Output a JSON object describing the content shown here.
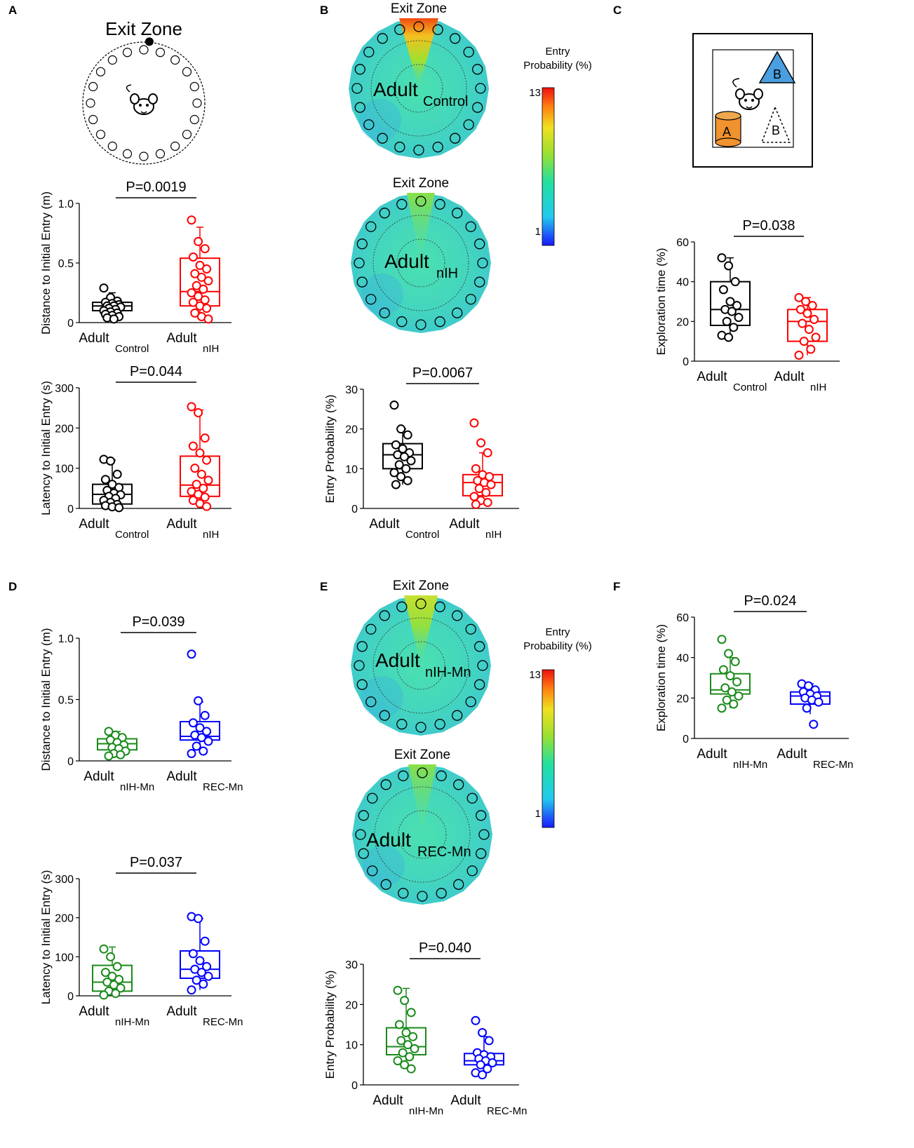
{
  "panel_letters": [
    "A",
    "B",
    "C",
    "D",
    "E",
    "F"
  ],
  "colors": {
    "black": "#000000",
    "red": "#ff0000",
    "green": "#1a8a1a",
    "blue": "#0000ff",
    "orange": "#f0922e",
    "lightblue": "#4a9fe0"
  },
  "schematics": {
    "maze_title": "Exit Zone",
    "heatmap_title": "Exit Zone",
    "heatmap_labels": {
      "B1": {
        "main": "Adult",
        "sub": "Control"
      },
      "B2": {
        "main": "Adult",
        "sub": "nIH"
      },
      "E1": {
        "main": "Adult",
        "sub": "nIH-Mn"
      },
      "E2": {
        "main": "Adult",
        "sub": "REC-Mn"
      }
    },
    "colorbar_title": [
      "Entry",
      "Probability (%)"
    ],
    "colorbar_max": "13",
    "colorbar_min": "1",
    "objects": {
      "cylinder": "A",
      "triangle": "B",
      "dashed_triangle": "B"
    }
  },
  "chart_data": [
    {
      "id": "A1",
      "type": "box",
      "ylabel": "Distance to Initial Entry (m)",
      "ylim": [
        0,
        1.0
      ],
      "yticks": [
        "0",
        "0.5",
        "1.0"
      ],
      "pvalue": "P=0.0019",
      "groups": [
        {
          "main": "Adult",
          "sub": "Control",
          "color": "black",
          "q1": 0.1,
          "median": 0.14,
          "q3": 0.17,
          "whisker_low": 0.05,
          "whisker_high": 0.25,
          "points": [
            0.29,
            0.21,
            0.18,
            0.17,
            0.16,
            0.15,
            0.14,
            0.14,
            0.13,
            0.12,
            0.11,
            0.1,
            0.09,
            0.08,
            0.07,
            0.06,
            0.05,
            0.04,
            0.03
          ]
        },
        {
          "main": "Adult",
          "sub": "nIH",
          "color": "red",
          "q1": 0.14,
          "median": 0.26,
          "q3": 0.54,
          "whisker_low": 0.03,
          "whisker_high": 0.8,
          "points": [
            0.86,
            0.68,
            0.62,
            0.55,
            0.48,
            0.45,
            0.41,
            0.38,
            0.35,
            0.31,
            0.28,
            0.25,
            0.22,
            0.19,
            0.17,
            0.14,
            0.12,
            0.08,
            0.05,
            0.03
          ]
        }
      ]
    },
    {
      "id": "A2",
      "type": "box",
      "ylabel": "Latency to Initial Entry (s)",
      "ylim": [
        0,
        300
      ],
      "yticks": [
        "0",
        "100",
        "200",
        "300"
      ],
      "pvalue": "P=0.044",
      "groups": [
        {
          "main": "Adult",
          "sub": "Control",
          "color": "black",
          "q1": 11,
          "median": 35,
          "q3": 60,
          "whisker_low": 3,
          "whisker_high": 120,
          "points": [
            122,
            118,
            85,
            72,
            60,
            52,
            45,
            38,
            34,
            30,
            25,
            20,
            15,
            10,
            7,
            4,
            2
          ]
        },
        {
          "main": "Adult",
          "sub": "nIH",
          "color": "red",
          "q1": 30,
          "median": 58,
          "q3": 130,
          "whisker_low": 5,
          "whisker_high": 245,
          "points": [
            253,
            238,
            175,
            155,
            138,
            120,
            100,
            85,
            70,
            60,
            50,
            42,
            35,
            28,
            20,
            12,
            5
          ]
        }
      ]
    },
    {
      "id": "B3",
      "type": "box",
      "ylabel": "Entry Probability (%)",
      "ylim": [
        0,
        30
      ],
      "yticks": [
        "0",
        "10",
        "20",
        "30"
      ],
      "pvalue": "P=0.0067",
      "groups": [
        {
          "main": "Adult",
          "sub": "Control",
          "color": "black",
          "q1": 10,
          "median": 13.5,
          "q3": 16.3,
          "whisker_low": 6,
          "whisker_high": 20,
          "points": [
            26,
            20,
            18.5,
            16,
            15,
            14,
            13.5,
            13,
            12,
            11,
            10,
            9,
            8,
            7,
            6
          ]
        },
        {
          "main": "Adult",
          "sub": "nIH",
          "color": "red",
          "q1": 3.2,
          "median": 6.5,
          "q3": 8.5,
          "whisker_low": 1,
          "whisker_high": 14,
          "points": [
            21.5,
            16.5,
            14,
            10,
            8.5,
            8,
            7,
            6.5,
            6,
            5,
            4,
            3,
            2,
            1.5,
            1
          ]
        }
      ]
    },
    {
      "id": "C1",
      "type": "box",
      "ylabel": "Exploration time (%)",
      "ylim": [
        0,
        60
      ],
      "yticks": [
        "0",
        "20",
        "40",
        "60"
      ],
      "pvalue": "P=0.038",
      "groups": [
        {
          "main": "Adult",
          "sub": "Control",
          "color": "black",
          "q1": 18,
          "median": 26,
          "q3": 40,
          "whisker_low": 12,
          "whisker_high": 52,
          "points": [
            52,
            48,
            40,
            36,
            30,
            28,
            26,
            25,
            22,
            20,
            17,
            13,
            12
          ]
        },
        {
          "main": "Adult",
          "sub": "nIH",
          "color": "red",
          "q1": 10,
          "median": 20,
          "q3": 26,
          "whisker_low": 3,
          "whisker_high": 32,
          "points": [
            32,
            30,
            28,
            26,
            24,
            21,
            19,
            16,
            12,
            10,
            6,
            3
          ]
        }
      ]
    },
    {
      "id": "D1",
      "type": "box",
      "ylabel": "Distance to Initial Entry (m)",
      "ylim": [
        0,
        1.0
      ],
      "yticks": [
        "0",
        "0.5",
        "1.0"
      ],
      "pvalue": "P=0.039",
      "groups": [
        {
          "main": "Adult",
          "sub": "nIH-Mn",
          "color": "green",
          "q1": 0.09,
          "median": 0.14,
          "q3": 0.18,
          "whisker_low": 0.04,
          "whisker_high": 0.24,
          "points": [
            0.24,
            0.21,
            0.19,
            0.17,
            0.15,
            0.13,
            0.11,
            0.1,
            0.08,
            0.06,
            0.05,
            0.04
          ]
        },
        {
          "main": "Adult",
          "sub": "REC-Mn",
          "color": "blue",
          "q1": 0.17,
          "median": 0.2,
          "q3": 0.32,
          "whisker_low": 0.07,
          "whisker_high": 0.48,
          "points": [
            0.87,
            0.49,
            0.37,
            0.31,
            0.27,
            0.24,
            0.21,
            0.19,
            0.16,
            0.12,
            0.08,
            0.06
          ]
        }
      ]
    },
    {
      "id": "D2",
      "type": "box",
      "ylabel": "Latency to Initial Entry (s)",
      "ylim": [
        0,
        300
      ],
      "yticks": [
        "0",
        "100",
        "200",
        "300"
      ],
      "pvalue": "P=0.037",
      "groups": [
        {
          "main": "Adult",
          "sub": "nIH-Mn",
          "color": "green",
          "q1": 12,
          "median": 35,
          "q3": 78,
          "whisker_low": 2,
          "whisker_high": 125,
          "points": [
            120,
            100,
            75,
            60,
            50,
            42,
            35,
            28,
            20,
            12,
            6,
            2
          ]
        },
        {
          "main": "Adult",
          "sub": "REC-Mn",
          "color": "blue",
          "q1": 45,
          "median": 68,
          "q3": 115,
          "whisker_low": 15,
          "whisker_high": 198,
          "points": [
            203,
            198,
            140,
            108,
            90,
            75,
            68,
            60,
            50,
            40,
            30,
            15
          ]
        }
      ]
    },
    {
      "id": "E3",
      "type": "box",
      "ylabel": "Entry Probability (%)",
      "ylim": [
        0,
        30
      ],
      "yticks": [
        "0",
        "10",
        "20",
        "30"
      ],
      "pvalue": "P=0.040",
      "groups": [
        {
          "main": "Adult",
          "sub": "nIH-Mn",
          "color": "green",
          "q1": 7.5,
          "median": 9.5,
          "q3": 14.2,
          "whisker_low": 4,
          "whisker_high": 24,
          "points": [
            23.5,
            21,
            18,
            15,
            13,
            12,
            11,
            10,
            9,
            8,
            7,
            6,
            5,
            4
          ]
        },
        {
          "main": "Adult",
          "sub": "REC-Mn",
          "color": "blue",
          "q1": 5,
          "median": 6,
          "q3": 7.8,
          "whisker_low": 2.5,
          "whisker_high": 12,
          "points": [
            16,
            13,
            11,
            8,
            7.5,
            7,
            6.5,
            6,
            5.5,
            5,
            4,
            3,
            2.5
          ]
        }
      ]
    },
    {
      "id": "F1",
      "type": "box",
      "ylabel": "Exploration time (%)",
      "ylim": [
        0,
        60
      ],
      "yticks": [
        "0",
        "20",
        "40",
        "60"
      ],
      "pvalue": "P=0.024",
      "groups": [
        {
          "main": "Adult",
          "sub": "nIH-Mn",
          "color": "green",
          "q1": 22,
          "median": 24,
          "q3": 32,
          "whisker_low": 15,
          "whisker_high": 40,
          "points": [
            49,
            42,
            38,
            34,
            31,
            28,
            25,
            23,
            21,
            19,
            17,
            15
          ]
        },
        {
          "main": "Adult",
          "sub": "REC-Mn",
          "color": "blue",
          "q1": 17,
          "median": 21,
          "q3": 23,
          "whisker_low": 12,
          "whisker_high": 27,
          "points": [
            27,
            26,
            24,
            23,
            22,
            21,
            20,
            19,
            18,
            15,
            7
          ]
        }
      ]
    }
  ]
}
